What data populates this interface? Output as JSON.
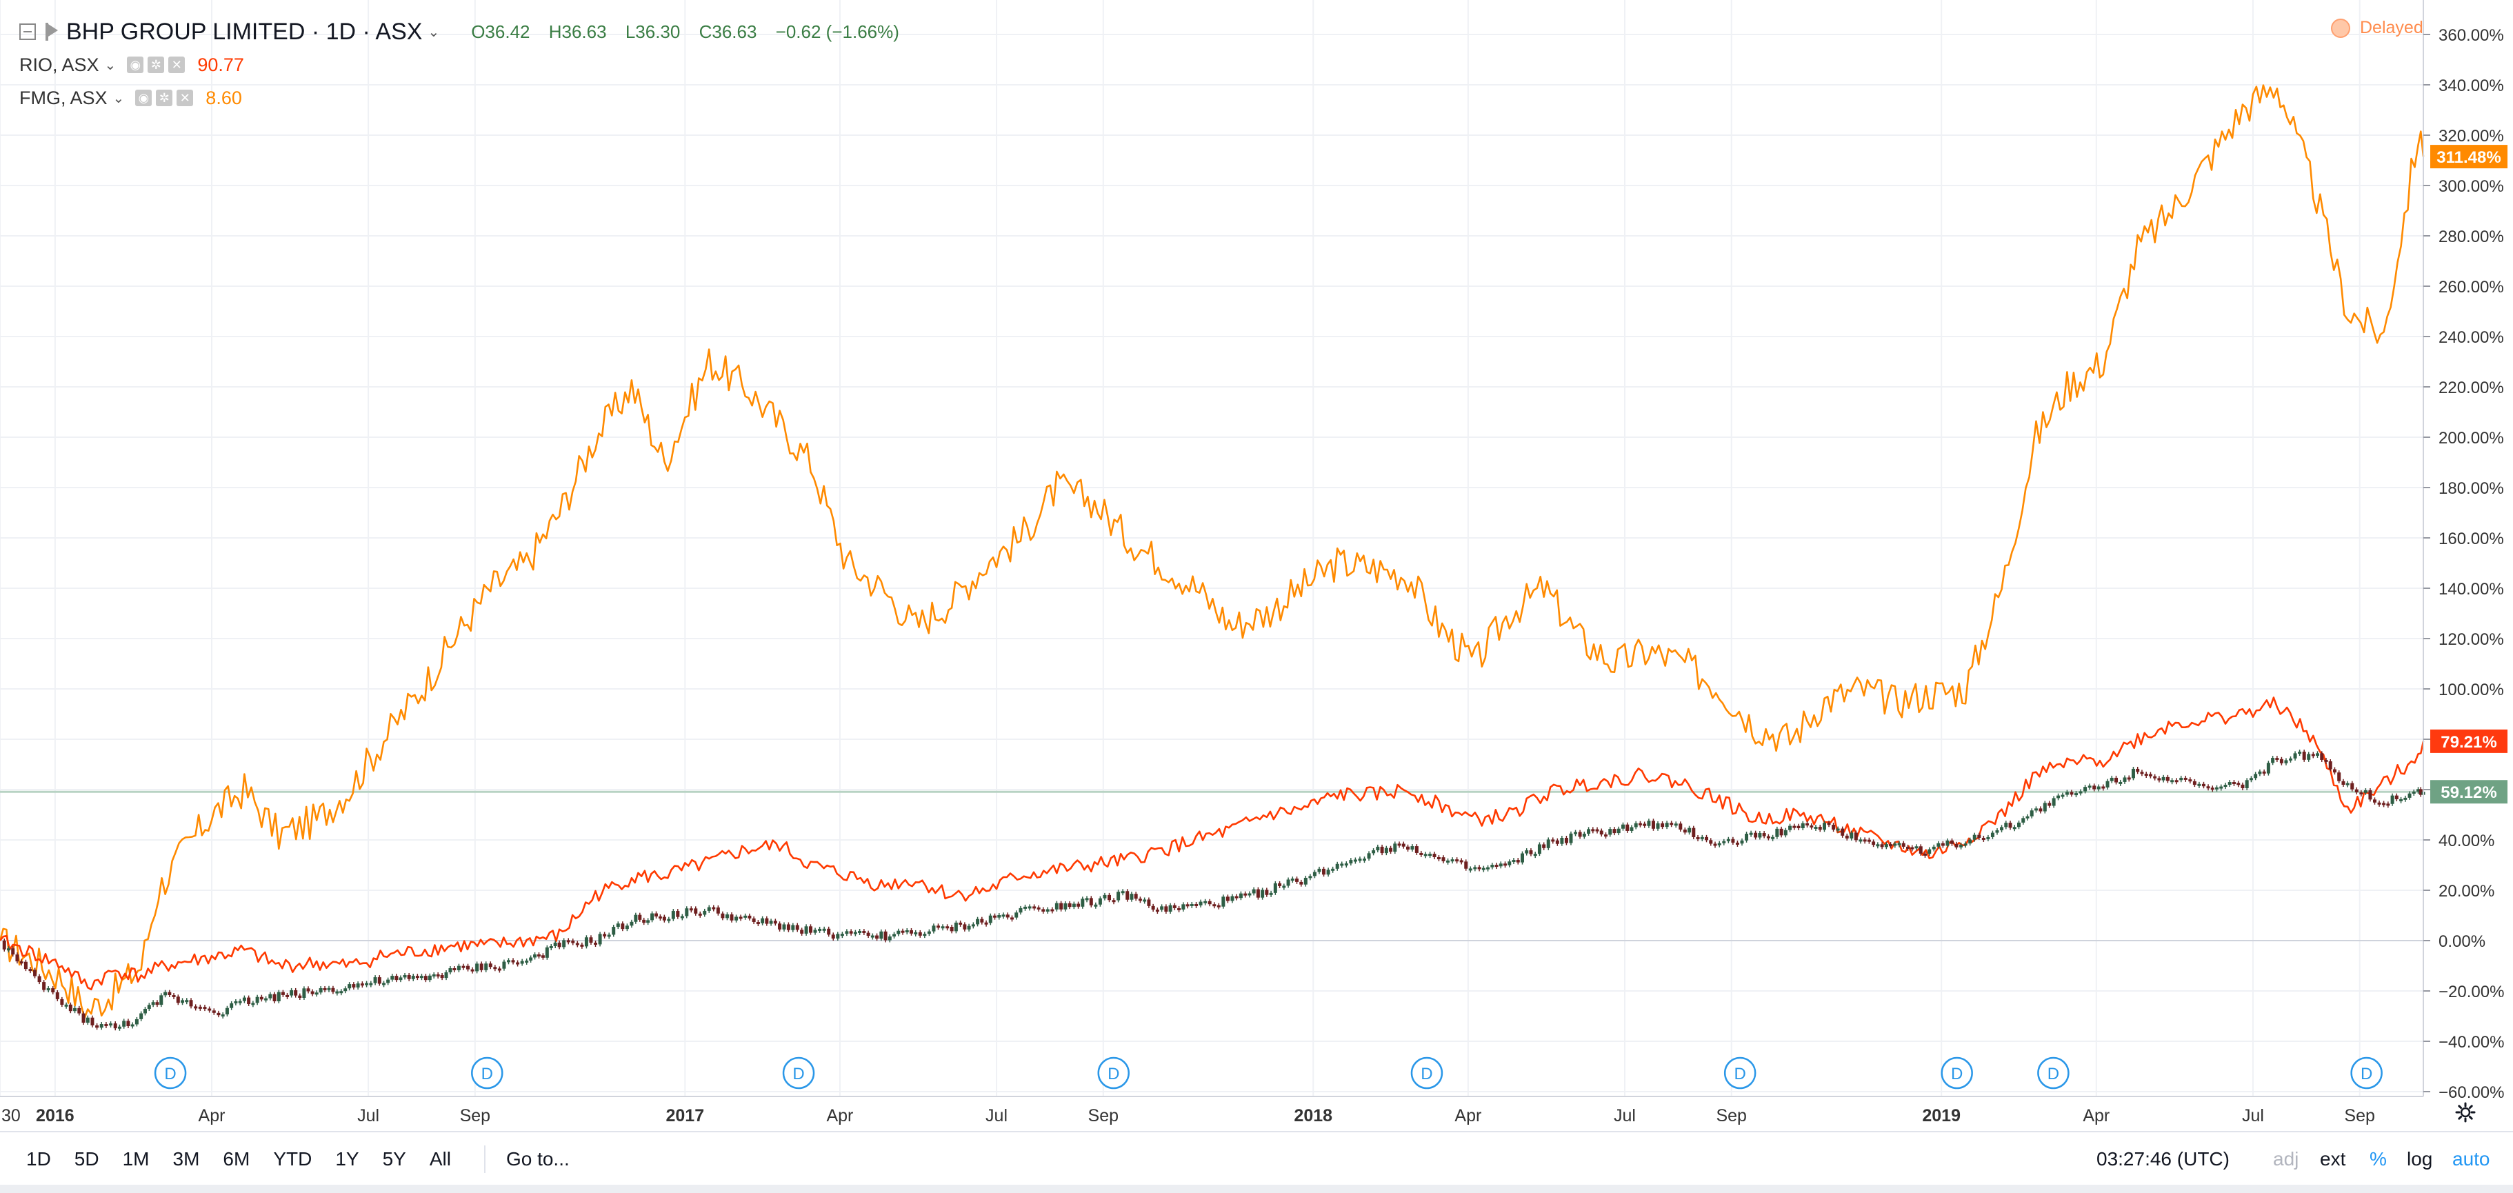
{
  "header": {
    "title": "BHP GROUP LIMITED · 1D · ASX",
    "ohlc": {
      "open": "O36.42",
      "high": "H36.63",
      "low": "L36.30",
      "close": "C36.63",
      "change": "−0.62 (−1.66%)"
    },
    "compare": [
      {
        "symbol": "RIO, ASX",
        "value": "90.77",
        "color": "#ff3a00"
      },
      {
        "symbol": "FMG, ASX",
        "value": "8.60",
        "color": "#ff8a00"
      }
    ],
    "delayed_label": "Delayed"
  },
  "bottom_bar": {
    "ranges": [
      "1D",
      "5D",
      "1M",
      "3M",
      "6M",
      "YTD",
      "1Y",
      "5Y",
      "All"
    ],
    "goto_label": "Go to...",
    "clock": "03:27:46 (UTC)",
    "options": {
      "adj": "adj",
      "ext": "ext",
      "percent": "%",
      "log": "log",
      "auto": "auto"
    }
  },
  "colors": {
    "bhp_up": "#2e5e45",
    "bhp_down": "#6e1f1f",
    "rio": "#ff3a00",
    "fmg": "#ff8a00",
    "rio_badge": "#ff3a0f",
    "fmg_badge": "#ff8a00",
    "bhp_badge": "#6fa284",
    "grid": "#eff1f5",
    "axis_text": "#333333",
    "dividend_marker": "#2a97e8"
  },
  "chart_data": {
    "type": "line",
    "x_tick_labels": [
      "30",
      "2016",
      "Apr",
      "Jul",
      "Sep",
      "2017",
      "Apr",
      "Jul",
      "Sep",
      "2018",
      "Apr",
      "Jul",
      "Sep",
      "2019",
      "Apr",
      "Jul",
      "Sep"
    ],
    "y_tick_labels": [
      "360.00%",
      "340.00%",
      "320.00%",
      "300.00%",
      "280.00%",
      "260.00%",
      "240.00%",
      "220.00%",
      "200.00%",
      "180.00%",
      "160.00%",
      "140.00%",
      "120.00%",
      "100.00%",
      "80.00%",
      "60.00%",
      "40.00%",
      "20.00%",
      "0.00%",
      "−20.00%",
      "−40.00%",
      "−60.00%"
    ],
    "ylim": [
      -60,
      370
    ],
    "xlim": [
      "2015-11-30",
      "2019-10-08"
    ],
    "dividend_label": "D",
    "dividend_dates": [
      "2016-03-08",
      "2016-09-08",
      "2017-03-08",
      "2017-09-07",
      "2018-03-08",
      "2018-09-06",
      "2019-01-10",
      "2019-03-07",
      "2019-09-05"
    ],
    "series": [
      {
        "name": "RIO, ASX",
        "last_label": "79.21%",
        "x": [
          "2015-11-30",
          "2015-12-15",
          "2016-01-05",
          "2016-01-20",
          "2016-02-05",
          "2016-02-20",
          "2016-03-05",
          "2016-03-20",
          "2016-04-05",
          "2016-04-20",
          "2016-05-10",
          "2016-06-01",
          "2016-06-20",
          "2016-07-10",
          "2016-08-01",
          "2016-08-20",
          "2016-09-10",
          "2016-10-01",
          "2016-10-20",
          "2016-11-10",
          "2016-12-01",
          "2016-12-20",
          "2017-01-15",
          "2017-02-05",
          "2017-02-25",
          "2017-03-15",
          "2017-04-05",
          "2017-04-25",
          "2017-05-15",
          "2017-06-05",
          "2017-06-25",
          "2017-07-15",
          "2017-08-05",
          "2017-08-25",
          "2017-09-15",
          "2017-10-05",
          "2017-10-25",
          "2017-11-15",
          "2017-12-05",
          "2017-12-25",
          "2018-01-15",
          "2018-02-05",
          "2018-02-25",
          "2018-03-15",
          "2018-04-05",
          "2018-04-25",
          "2018-05-15",
          "2018-06-05",
          "2018-06-25",
          "2018-07-15",
          "2018-08-05",
          "2018-08-25",
          "2018-09-15",
          "2018-10-05",
          "2018-10-25",
          "2018-11-15",
          "2018-12-05",
          "2018-12-25",
          "2019-01-15",
          "2019-02-05",
          "2019-02-25",
          "2019-03-15",
          "2019-04-05",
          "2019-04-25",
          "2019-05-15",
          "2019-06-05",
          "2019-06-25",
          "2019-07-15",
          "2019-08-05",
          "2019-08-25",
          "2019-09-15",
          "2019-10-05",
          "2019-10-08"
        ],
        "values": [
          0,
          -4,
          -10,
          -18,
          -12,
          -14,
          -10,
          -8,
          -6,
          -4,
          -10,
          -9,
          -10,
          -6,
          -4,
          -2,
          -2,
          0,
          2,
          18,
          25,
          26,
          31,
          36,
          38,
          30,
          26,
          22,
          24,
          18,
          20,
          26,
          28,
          30,
          32,
          36,
          40,
          44,
          50,
          52,
          58,
          58,
          60,
          54,
          48,
          50,
          58,
          62,
          64,
          66,
          62,
          56,
          48,
          50,
          48,
          42,
          38,
          34,
          40,
          50,
          66,
          70,
          72,
          80,
          86,
          88,
          90,
          94,
          80,
          52,
          62,
          74,
          79.21
        ]
      },
      {
        "name": "FMG, ASX",
        "last_label": "311.48%",
        "x": [
          "2015-11-30",
          "2015-12-15",
          "2016-01-05",
          "2016-01-20",
          "2016-02-05",
          "2016-02-20",
          "2016-03-01",
          "2016-03-15",
          "2016-04-01",
          "2016-04-20",
          "2016-05-10",
          "2016-06-01",
          "2016-06-20",
          "2016-07-10",
          "2016-08-01",
          "2016-08-20",
          "2016-09-10",
          "2016-10-01",
          "2016-10-20",
          "2016-11-10",
          "2016-12-01",
          "2016-12-20",
          "2017-01-15",
          "2017-02-05",
          "2017-02-25",
          "2017-03-15",
          "2017-04-05",
          "2017-04-25",
          "2017-05-15",
          "2017-06-05",
          "2017-06-25",
          "2017-07-15",
          "2017-08-05",
          "2017-08-25",
          "2017-09-15",
          "2017-10-05",
          "2017-10-25",
          "2017-11-15",
          "2017-12-05",
          "2017-12-25",
          "2018-01-15",
          "2018-02-05",
          "2018-02-25",
          "2018-03-15",
          "2018-04-05",
          "2018-04-25",
          "2018-05-15",
          "2018-06-05",
          "2018-06-25",
          "2018-07-15",
          "2018-08-05",
          "2018-08-25",
          "2018-09-15",
          "2018-10-05",
          "2018-10-25",
          "2018-11-15",
          "2018-12-05",
          "2018-12-25",
          "2019-01-15",
          "2019-02-05",
          "2019-02-25",
          "2019-03-15",
          "2019-04-05",
          "2019-04-25",
          "2019-05-15",
          "2019-06-05",
          "2019-06-25",
          "2019-07-15",
          "2019-08-05",
          "2019-08-25",
          "2019-09-15",
          "2019-10-05",
          "2019-10-08"
        ],
        "values": [
          0,
          -6,
          -15,
          -28,
          -20,
          -10,
          20,
          35,
          50,
          60,
          42,
          48,
          60,
          80,
          100,
          120,
          140,
          150,
          170,
          200,
          220,
          190,
          230,
          220,
          205,
          190,
          150,
          140,
          125,
          135,
          150,
          160,
          180,
          175,
          160,
          150,
          140,
          125,
          130,
          140,
          150,
          148,
          145,
          125,
          110,
          130,
          140,
          120,
          110,
          115,
          110,
          100,
          85,
          80,
          95,
          100,
          95,
          98,
          100,
          140,
          200,
          220,
          230,
          275,
          290,
          310,
          330,
          340,
          300,
          250,
          240,
          320,
          311.48
        ]
      },
      {
        "name": "BHP GROUP LIMITED",
        "last_label": "59.12%",
        "x": [
          "2015-11-30",
          "2015-12-15",
          "2016-01-05",
          "2016-01-20",
          "2016-02-05",
          "2016-02-20",
          "2016-03-05",
          "2016-03-20",
          "2016-04-05",
          "2016-04-20",
          "2016-05-10",
          "2016-06-01",
          "2016-06-20",
          "2016-07-10",
          "2016-08-01",
          "2016-08-20",
          "2016-09-10",
          "2016-10-01",
          "2016-10-20",
          "2016-11-10",
          "2016-12-01",
          "2016-12-20",
          "2017-01-15",
          "2017-02-05",
          "2017-02-25",
          "2017-03-15",
          "2017-04-05",
          "2017-04-25",
          "2017-05-15",
          "2017-06-05",
          "2017-06-25",
          "2017-07-15",
          "2017-08-05",
          "2017-08-25",
          "2017-09-15",
          "2017-10-05",
          "2017-10-25",
          "2017-11-15",
          "2017-12-05",
          "2017-12-25",
          "2018-01-15",
          "2018-02-05",
          "2018-02-25",
          "2018-03-15",
          "2018-04-05",
          "2018-04-25",
          "2018-05-15",
          "2018-06-05",
          "2018-06-25",
          "2018-07-15",
          "2018-08-05",
          "2018-08-25",
          "2018-09-15",
          "2018-10-05",
          "2018-10-25",
          "2018-11-15",
          "2018-12-05",
          "2018-12-25",
          "2019-01-15",
          "2019-02-05",
          "2019-02-25",
          "2019-03-15",
          "2019-04-05",
          "2019-04-25",
          "2019-05-15",
          "2019-06-05",
          "2019-06-25",
          "2019-07-15",
          "2019-08-05",
          "2019-08-25",
          "2019-09-15",
          "2019-10-05",
          "2019-10-08"
        ],
        "values": [
          0,
          -12,
          -25,
          -32,
          -35,
          -30,
          -22,
          -25,
          -28,
          -24,
          -22,
          -20,
          -18,
          -16,
          -15,
          -12,
          -10,
          -8,
          -2,
          0,
          8,
          10,
          12,
          8,
          6,
          4,
          2,
          2,
          3,
          5,
          8,
          12,
          14,
          16,
          18,
          12,
          14,
          16,
          20,
          24,
          30,
          36,
          38,
          32,
          28,
          30,
          38,
          42,
          44,
          46,
          44,
          38,
          42,
          44,
          46,
          40,
          38,
          36,
          40,
          44,
          52,
          58,
          62,
          68,
          64,
          60,
          62,
          72,
          74,
          62,
          55,
          60,
          59.12
        ]
      }
    ]
  }
}
